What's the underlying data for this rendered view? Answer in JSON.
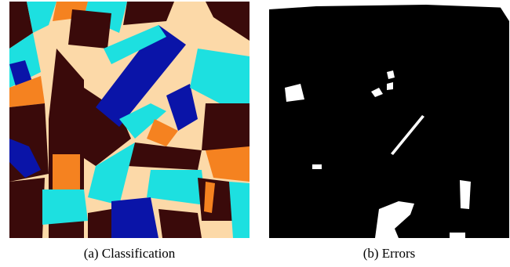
{
  "figure": {
    "panels": [
      {
        "caption": "(a) Classification"
      },
      {
        "caption": "(b) Errors"
      }
    ]
  }
}
